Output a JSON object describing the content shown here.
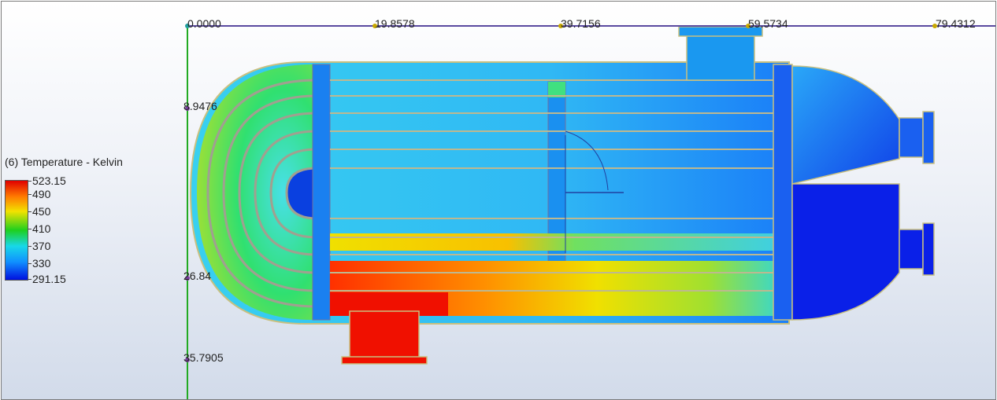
{
  "legend": {
    "title": "(6) Temperature - Kelvin",
    "max": "523.15",
    "ticks": [
      "490",
      "450",
      "410",
      "370",
      "330"
    ],
    "min": "291.15",
    "colors": [
      "#e00000",
      "#ff7a00",
      "#f2e200",
      "#1ed01e",
      "#18d8e8",
      "#1090ff",
      "#0010e0"
    ]
  },
  "ruler_x": {
    "origin_label": "0.0000",
    "labels": [
      "19.8578",
      "39.7156",
      "59.5734",
      "79.4312"
    ],
    "line_color": "#5a4aa0"
  },
  "ruler_y": {
    "labels": [
      "8.9476",
      "26.84",
      "35.7905"
    ],
    "line_color": "#22aa22"
  },
  "model": {
    "name": "U-tube heat exchanger",
    "hot_inlet_color": "#e00000",
    "cold_shell_color": "#0010e0"
  }
}
